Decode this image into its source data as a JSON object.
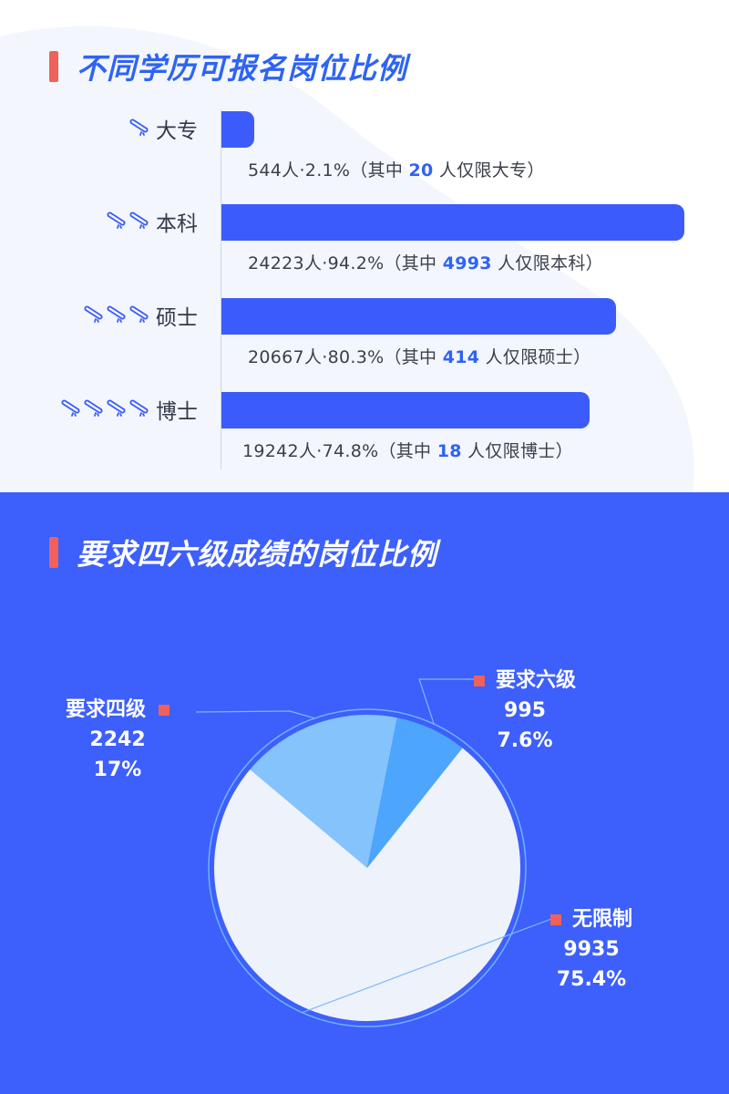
{
  "section1": {
    "title": "不同学历可报名岗位比例"
  },
  "section2": {
    "title": "要求四六级成绩的岗位比例"
  },
  "colors": {
    "accent_mark": "#f0615b",
    "bar": "#3b5cfa",
    "highlight": "#2e63f3",
    "bottom_bg": "#3d5ffb",
    "pie_none": "#eef2fb",
    "pie_cet4": "#85c3fd",
    "pie_cet6": "#4da5fc"
  },
  "chart_data": [
    {
      "type": "bar",
      "orientation": "horizontal",
      "title": "不同学历可报名岗位比例",
      "categories": [
        "大专",
        "本科",
        "硕士",
        "博士"
      ],
      "icon_counts": [
        1,
        2,
        3,
        4
      ],
      "icon": "diploma-scroll-icon",
      "values": [
        544,
        24223,
        20667,
        19242
      ],
      "percent": [
        "2.1%",
        "94.2%",
        "80.3%",
        "74.8%"
      ],
      "exclusive": [
        20,
        4993,
        414,
        18
      ],
      "rows": [
        {
          "pre": "544人·2.1%（其中 ",
          "hl": "20",
          "post": " 人仅限大专）"
        },
        {
          "pre": "24223人·94.2%（其中 ",
          "hl": "4993",
          "post": " 人仅限本科）"
        },
        {
          "pre": "20667人·80.3%（其中 ",
          "hl": "414",
          "post": " 人仅限硕士）"
        },
        {
          "pre": "19242人·74.8%（其中 ",
          "hl": "18",
          "post": " 人仅限博士）"
        }
      ]
    },
    {
      "type": "pie",
      "title": "要求四六级成绩的岗位比例",
      "slices": [
        {
          "label": "要求四级",
          "value": 2242,
          "percent": "17%"
        },
        {
          "label": "要求六级",
          "value": 995,
          "percent": "7.6%"
        },
        {
          "label": "无限制",
          "value": 9935,
          "percent": "75.4%"
        }
      ]
    }
  ]
}
